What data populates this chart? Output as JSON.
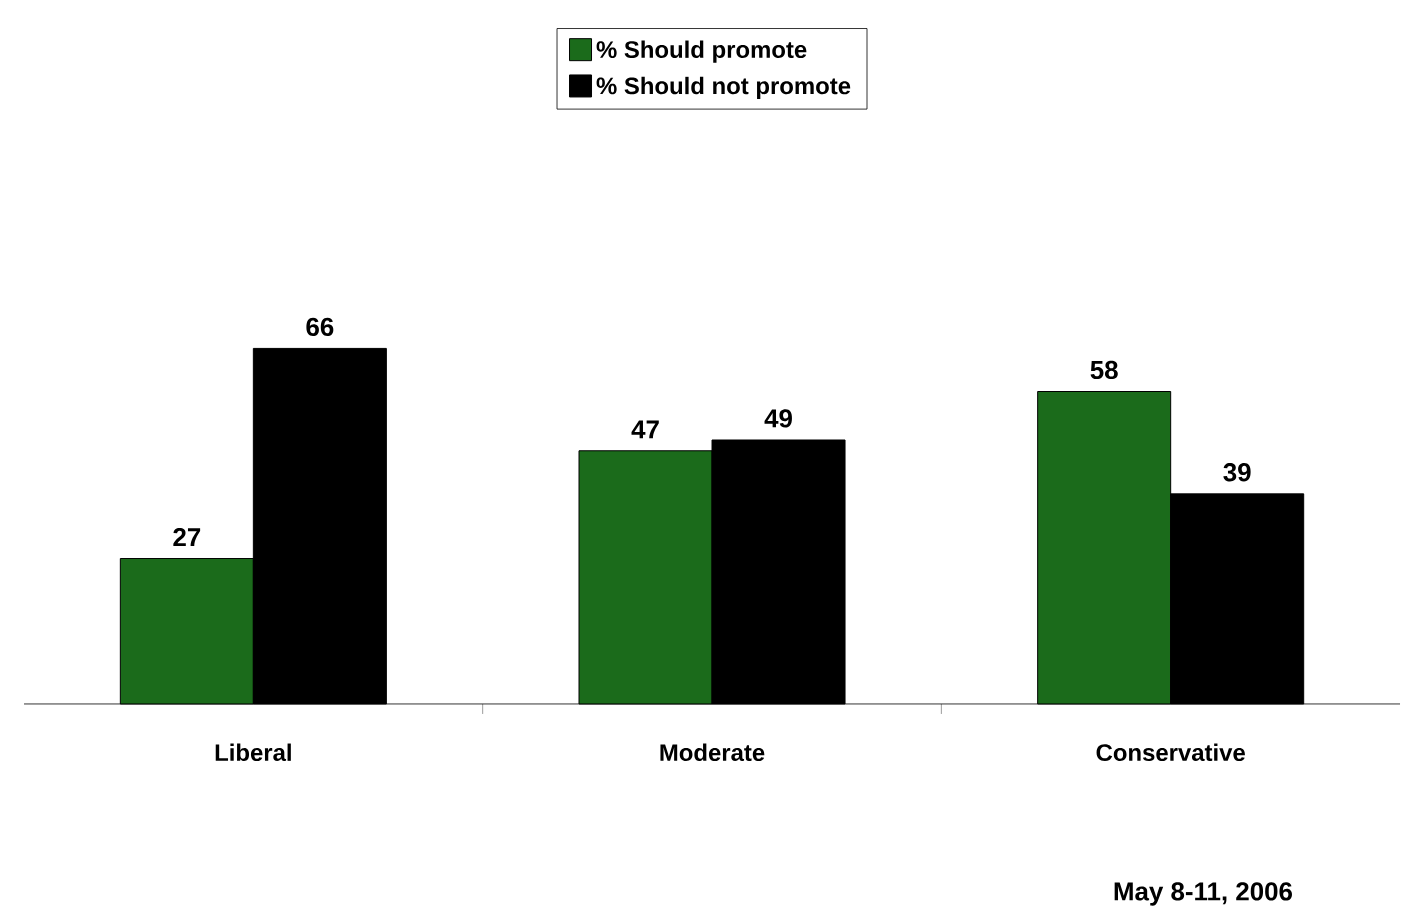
{
  "chart_data": {
    "type": "bar",
    "categories": [
      "Liberal",
      "Moderate",
      "Conservative"
    ],
    "series": [
      {
        "name": "% Should promote",
        "color": "#1b6b1b",
        "values": [
          27,
          47,
          58
        ]
      },
      {
        "name": "% Should not promote",
        "color": "#000000",
        "values": [
          66,
          49,
          39
        ]
      }
    ],
    "data_labels": true,
    "legend": "top",
    "annotations": [
      "May 8-11, 2006"
    ]
  }
}
